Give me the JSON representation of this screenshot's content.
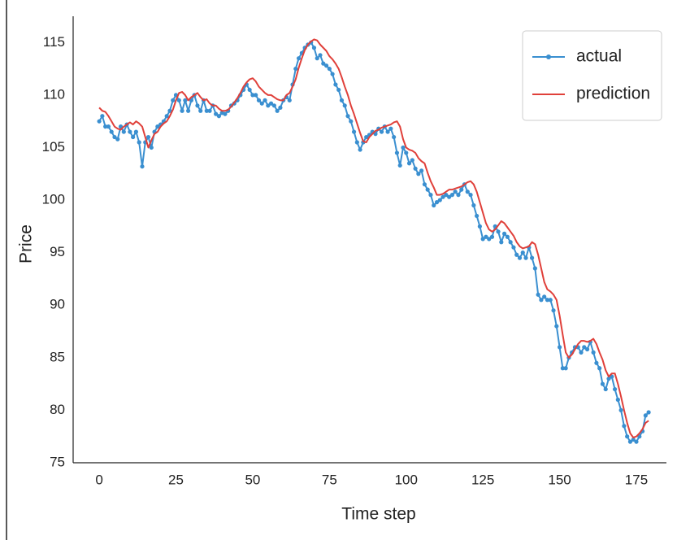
{
  "chart_data": {
    "type": "line",
    "xlabel": "Time step",
    "ylabel": "Price",
    "x": [
      0,
      1,
      2,
      3,
      4,
      5,
      6,
      7,
      8,
      9,
      10,
      11,
      12,
      13,
      14,
      15,
      16,
      17,
      18,
      19,
      20,
      21,
      22,
      23,
      24,
      25,
      26,
      27,
      28,
      29,
      30,
      31,
      32,
      33,
      34,
      35,
      36,
      37,
      38,
      39,
      40,
      41,
      42,
      43,
      44,
      45,
      46,
      47,
      48,
      49,
      50,
      51,
      52,
      53,
      54,
      55,
      56,
      57,
      58,
      59,
      60,
      61,
      62,
      63,
      64,
      65,
      66,
      67,
      68,
      69,
      70,
      71,
      72,
      73,
      74,
      75,
      76,
      77,
      78,
      79,
      80,
      81,
      82,
      83,
      84,
      85,
      86,
      87,
      88,
      89,
      90,
      91,
      92,
      93,
      94,
      95,
      96,
      97,
      98,
      99,
      100,
      101,
      102,
      103,
      104,
      105,
      106,
      107,
      108,
      109,
      110,
      111,
      112,
      113,
      114,
      115,
      116,
      117,
      118,
      119,
      120,
      121,
      122,
      123,
      124,
      125,
      126,
      127,
      128,
      129,
      130,
      131,
      132,
      133,
      134,
      135,
      136,
      137,
      138,
      139,
      140,
      141,
      142,
      143,
      144,
      145,
      146,
      147,
      148,
      149,
      150,
      151,
      152,
      153,
      154,
      155,
      156,
      157,
      158,
      159,
      160,
      161,
      162,
      163,
      164,
      165,
      166,
      167,
      168,
      169,
      170,
      171,
      172,
      173,
      174,
      175,
      176,
      177,
      178,
      179
    ],
    "series": [
      {
        "name": "actual",
        "color": "#3a8fd0",
        "marker": true,
        "values": [
          107.5,
          108,
          107,
          107,
          106.5,
          106,
          105.8,
          107,
          106.5,
          107.2,
          106.5,
          106,
          106.5,
          105.5,
          103.2,
          105.5,
          106,
          105,
          106.5,
          107,
          107.2,
          107.5,
          108,
          108.5,
          109.5,
          110,
          109.5,
          108.5,
          109.5,
          108.5,
          109.5,
          110,
          109,
          108.5,
          109.5,
          108.5,
          108.5,
          109,
          108.2,
          108,
          108.3,
          108.2,
          108.5,
          109,
          109.2,
          109.5,
          110,
          110.5,
          111,
          110.5,
          110,
          110,
          109.5,
          109.2,
          109.5,
          109,
          109.2,
          109,
          108.5,
          108.8,
          109.5,
          109.8,
          109.5,
          111,
          112.5,
          113.5,
          114,
          114.5,
          114.8,
          115,
          114.5,
          113.5,
          113.8,
          113,
          112.8,
          112.5,
          112,
          111,
          110.5,
          109.5,
          109,
          108,
          107.5,
          106.5,
          105.5,
          104.8,
          105.5,
          106,
          106.2,
          106.5,
          106.3,
          106.8,
          106.5,
          107,
          106.5,
          106.8,
          106,
          104.5,
          103.3,
          105,
          104.5,
          103.5,
          103.8,
          103,
          102.5,
          102.8,
          101.5,
          101,
          100.5,
          99.5,
          99.8,
          100,
          100.3,
          100.5,
          100.3,
          100.5,
          100.8,
          100.5,
          101,
          101.5,
          100.8,
          100.5,
          99.5,
          98.5,
          97.5,
          96.3,
          96.5,
          96.3,
          96.5,
          97.5,
          97,
          96,
          96.8,
          96.5,
          96,
          95.5,
          94.8,
          94.5,
          95,
          94.5,
          95.5,
          94.5,
          93.5,
          91,
          90.5,
          90.8,
          90.5,
          90.5,
          89.5,
          88,
          86,
          84,
          84,
          85,
          85.5,
          86,
          86,
          85.5,
          86,
          85.8,
          86.5,
          85.5,
          84.5,
          84,
          82.5,
          82,
          83,
          83.2,
          82,
          81,
          80,
          78.5,
          77.5,
          77,
          77.2,
          77,
          77.5,
          78,
          79.5,
          79.8
        ]
      },
      {
        "name": "prediction",
        "color": "#e0403a",
        "marker": false,
        "values": [
          108.8,
          108.5,
          108.4,
          108,
          107.5,
          107,
          106.8,
          106.7,
          107,
          107.2,
          107.4,
          107.2,
          107.5,
          107.3,
          107,
          106,
          105,
          105.7,
          106.3,
          106.5,
          107,
          107.3,
          107.5,
          108,
          108.6,
          109.5,
          110.2,
          110.3,
          110,
          109.5,
          109.8,
          110,
          110.2,
          109.8,
          109.5,
          109.6,
          109.2,
          109,
          109,
          108.7,
          108.5,
          108.5,
          108.6,
          108.9,
          109.3,
          109.7,
          110.2,
          110.8,
          111.2,
          111.5,
          111.6,
          111.3,
          110.8,
          110.5,
          110.2,
          110,
          110,
          109.8,
          109.6,
          109.5,
          109.5,
          110,
          110.2,
          110.8,
          111.5,
          112.6,
          113.5,
          114.3,
          114.8,
          115.1,
          115.3,
          115.2,
          114.8,
          114.5,
          114.2,
          113.7,
          113.4,
          113,
          112.5,
          111.7,
          110.8,
          110,
          109,
          108.2,
          107.3,
          106.4,
          105.6,
          105.5,
          106,
          106.3,
          106.6,
          106.7,
          106.9,
          107,
          107.1,
          107.2,
          107.4,
          107.5,
          107,
          105.8,
          105,
          104.8,
          104.7,
          104.5,
          104,
          103.7,
          103.5,
          102.6,
          101.8,
          101.2,
          100.5,
          100.5,
          100.6,
          100.8,
          101,
          101,
          101.1,
          101.2,
          101.3,
          101.5,
          101.7,
          101.8,
          101.5,
          100.8,
          99.8,
          98.8,
          97.8,
          97.2,
          97,
          97.2,
          97.6,
          98,
          97.8,
          97.4,
          97,
          96.6,
          96,
          95.6,
          95.4,
          95.5,
          95.6,
          96,
          95.8,
          94.8,
          93.5,
          92.2,
          91.5,
          91.3,
          91,
          90.5,
          89,
          87.2,
          85.5,
          85,
          85.3,
          85.8,
          86.3,
          86.6,
          86.6,
          86.5,
          86.6,
          86.8,
          86.3,
          85.5,
          84.8,
          83.8,
          83.2,
          83.5,
          83.5,
          82.5,
          81.3,
          80,
          78.8,
          77.8,
          77.4,
          77.5,
          77.8,
          78.2,
          78.8,
          79
        ]
      }
    ],
    "xlim": [
      -8.5,
      184.8
    ],
    "ylim": [
      75,
      117.5
    ],
    "xticks": [
      0,
      25,
      50,
      75,
      100,
      125,
      150,
      175
    ],
    "yticks": [
      75,
      80,
      85,
      90,
      95,
      100,
      105,
      110,
      115
    ],
    "grid": false,
    "legend": "upper right"
  }
}
